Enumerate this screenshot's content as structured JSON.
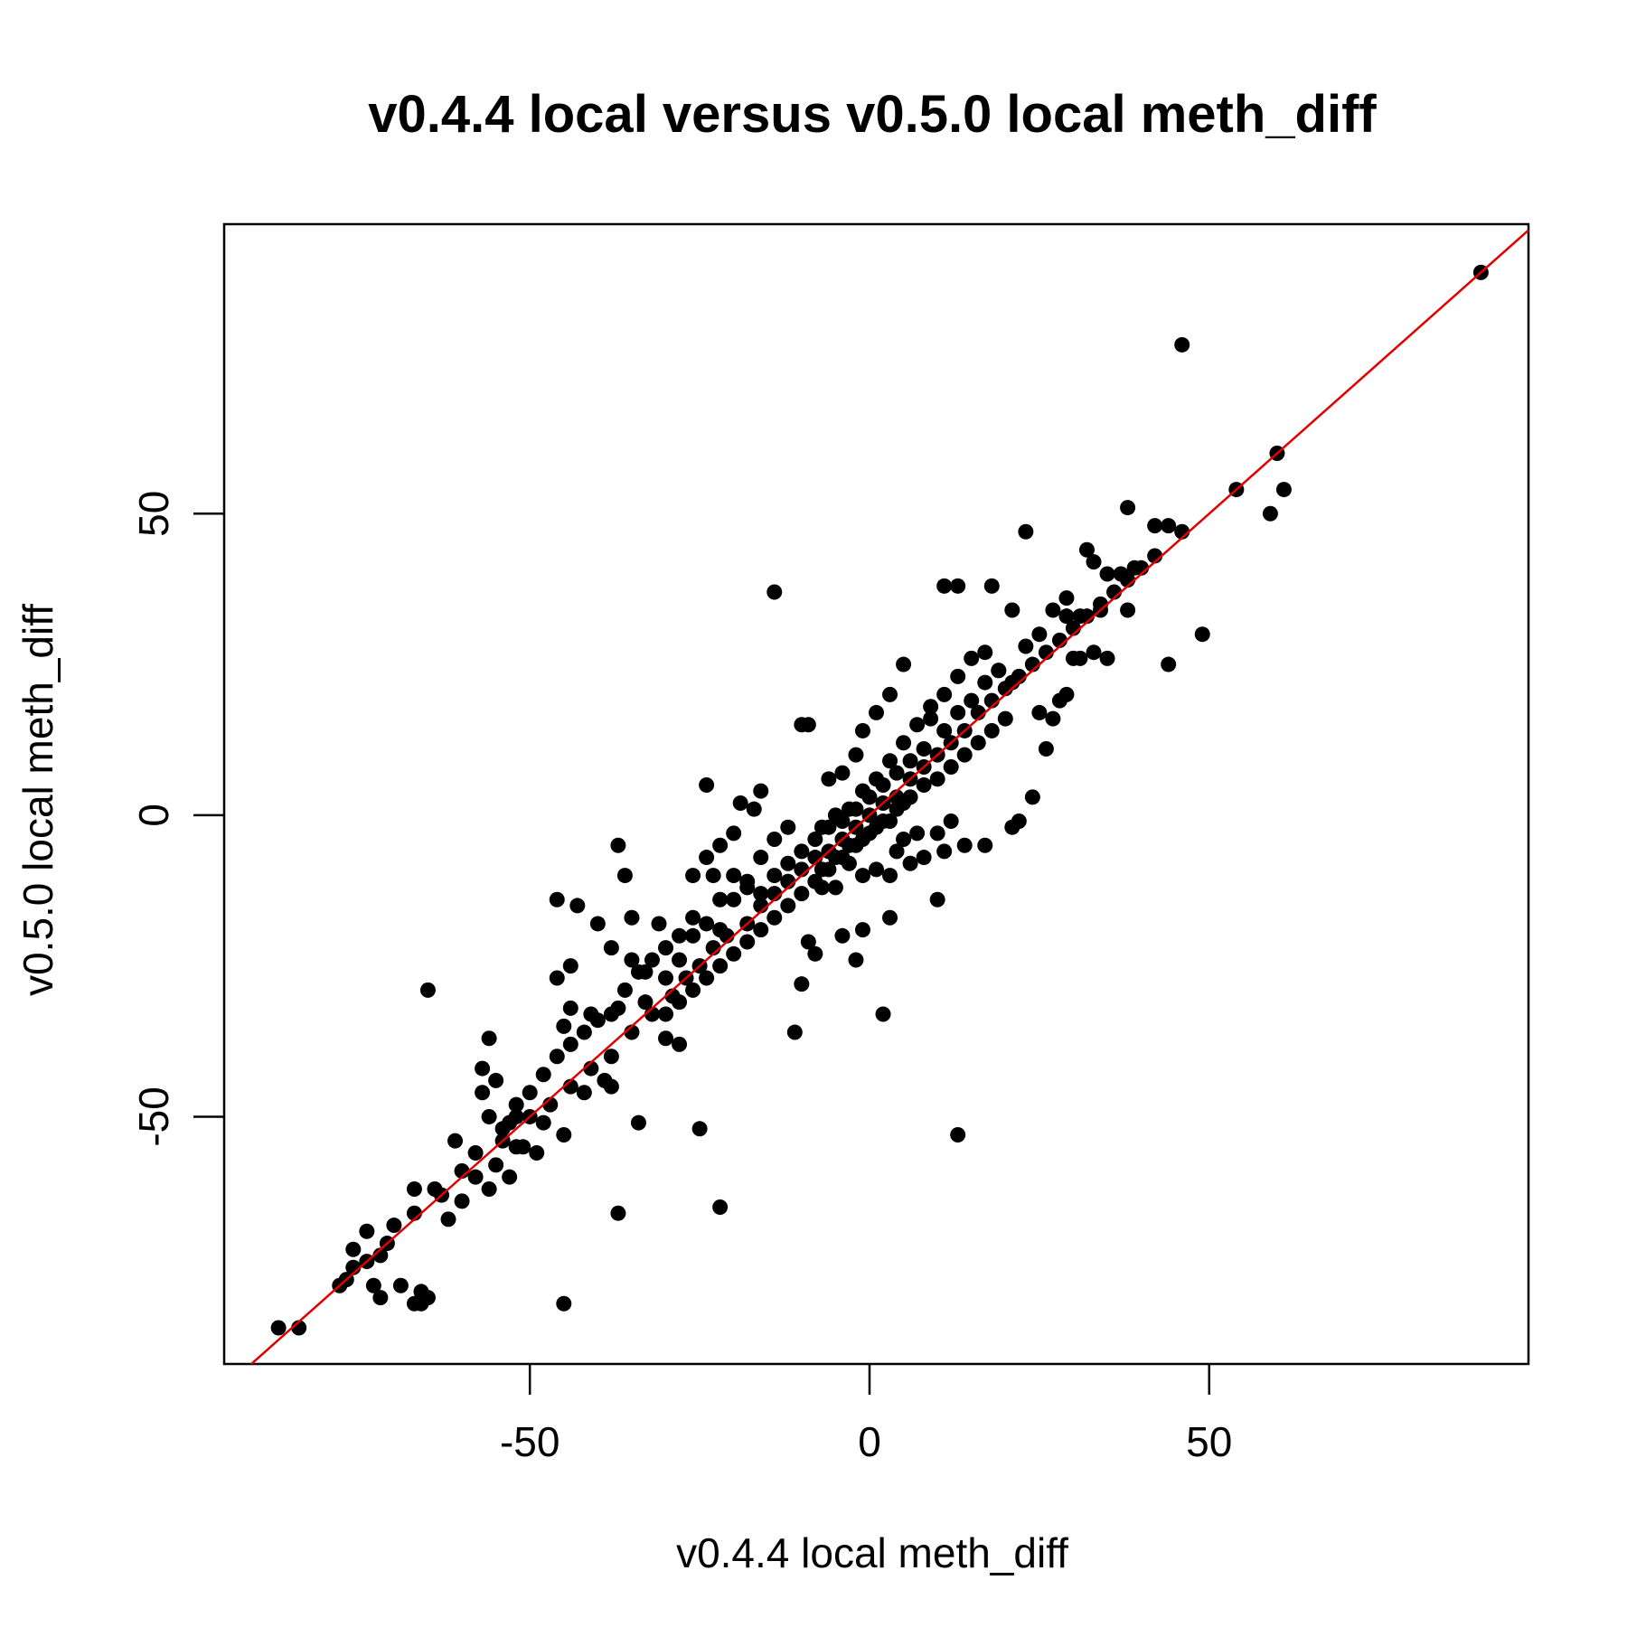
{
  "chart_data": {
    "type": "scatter",
    "title": "v0.4.4 local versus v0.5.0 local meth_diff",
    "xlabel": "v0.4.4 local meth_diff",
    "ylabel": "v0.5.0 local meth_diff",
    "xlim": [
      -95,
      97
    ],
    "ylim": [
      -91,
      98
    ],
    "xticks": [
      -50,
      0,
      50
    ],
    "yticks": [
      -50,
      0,
      50
    ],
    "xtick_labels": [
      "-50",
      "0",
      "50"
    ],
    "ytick_labels": [
      "-50",
      "0",
      "50"
    ],
    "grid": false,
    "legend": "none",
    "point_color": "#000000",
    "reference_line": {
      "type": "identity",
      "slope": 1,
      "intercept": 0,
      "color": "#e00000"
    },
    "points": [
      [
        90,
        90
      ],
      [
        46,
        78
      ],
      [
        60,
        60
      ],
      [
        61,
        54
      ],
      [
        59,
        50
      ],
      [
        54,
        54
      ],
      [
        38,
        51
      ],
      [
        23,
        47
      ],
      [
        42,
        48
      ],
      [
        44,
        48
      ],
      [
        46,
        47
      ],
      [
        49,
        30
      ],
      [
        44,
        25
      ],
      [
        38,
        34
      ],
      [
        34,
        34
      ],
      [
        -14,
        37
      ],
      [
        11,
        38
      ],
      [
        13,
        38
      ],
      [
        18,
        38
      ],
      [
        21,
        34
      ],
      [
        32,
        44
      ],
      [
        33,
        42
      ],
      [
        35,
        40
      ],
      [
        37,
        40
      ],
      [
        39,
        41
      ],
      [
        29,
        36
      ],
      [
        27,
        34
      ],
      [
        25,
        30
      ],
      [
        23,
        28
      ],
      [
        29,
        20
      ],
      [
        30,
        26
      ],
      [
        33,
        27
      ],
      [
        21,
        22
      ],
      [
        19,
        24
      ],
      [
        17,
        27
      ],
      [
        15,
        26
      ],
      [
        13,
        23
      ],
      [
        11,
        20
      ],
      [
        9,
        18
      ],
      [
        5,
        25
      ],
      [
        3,
        20
      ],
      [
        1,
        17
      ],
      [
        -1,
        14
      ],
      [
        -2,
        10
      ],
      [
        -4,
        7
      ],
      [
        -6,
        6
      ],
      [
        -10,
        15
      ],
      [
        -9,
        15
      ],
      [
        -24,
        5
      ],
      [
        -16,
        4
      ],
      [
        -17,
        1
      ],
      [
        -19,
        2
      ],
      [
        -20,
        -3
      ],
      [
        -22,
        -5
      ],
      [
        -24,
        -7
      ],
      [
        -26,
        -10
      ],
      [
        -23,
        -10
      ],
      [
        -37,
        -5
      ],
      [
        -36,
        -10
      ],
      [
        -40,
        -18
      ],
      [
        -35,
        -17
      ],
      [
        -35,
        -24
      ],
      [
        -31,
        -18
      ],
      [
        -46,
        -14
      ],
      [
        -43,
        -15
      ],
      [
        -44,
        -25
      ],
      [
        -46,
        -27
      ],
      [
        -44,
        -32
      ],
      [
        -41,
        -33
      ],
      [
        -45,
        -35
      ],
      [
        -38,
        -33
      ],
      [
        -38,
        -22
      ],
      [
        -33,
        -26
      ],
      [
        -33,
        -31
      ],
      [
        -30,
        -37
      ],
      [
        -28,
        -38
      ],
      [
        -39,
        -44
      ],
      [
        -38,
        -45
      ],
      [
        -34,
        -51
      ],
      [
        -25,
        -52
      ],
      [
        -22,
        -65
      ],
      [
        -37,
        -66
      ],
      [
        -45,
        -53
      ],
      [
        -48,
        -51
      ],
      [
        -42,
        -46
      ],
      [
        -52,
        -50
      ],
      [
        -54,
        -52
      ],
      [
        -56,
        -50
      ],
      [
        -57,
        -46
      ],
      [
        -56,
        -37
      ],
      [
        -57,
        -42
      ],
      [
        -55,
        -44
      ],
      [
        -65,
        -29
      ],
      [
        -61,
        -54
      ],
      [
        -58,
        -56
      ],
      [
        -60,
        -59
      ],
      [
        -56,
        -62
      ],
      [
        -53,
        -60
      ],
      [
        -51,
        -55
      ],
      [
        -49,
        -56
      ],
      [
        -64,
        -62
      ],
      [
        -67,
        -62
      ],
      [
        -67,
        -66
      ],
      [
        -70,
        -68
      ],
      [
        -71,
        -71
      ],
      [
        -72,
        -73
      ],
      [
        -74,
        -74
      ],
      [
        -76,
        -75
      ],
      [
        -77,
        -77
      ],
      [
        -78,
        -78
      ],
      [
        -76,
        -72
      ],
      [
        -74,
        -69
      ],
      [
        -73,
        -78
      ],
      [
        -72,
        -80
      ],
      [
        -69,
        -78
      ],
      [
        -66,
        -79
      ],
      [
        -65,
        -80
      ],
      [
        -66,
        -81
      ],
      [
        -67,
        -81
      ],
      [
        -45,
        -81
      ],
      [
        -84,
        -85
      ],
      [
        -87,
        -85
      ],
      [
        -62,
        -67
      ],
      [
        -60,
        -64
      ],
      [
        -63,
        -63
      ],
      [
        -58,
        -60
      ],
      [
        -55,
        -58
      ],
      [
        -52,
        -55
      ],
      [
        -50,
        -50
      ],
      [
        -47,
        -48
      ],
      [
        -44,
        -45
      ],
      [
        -41,
        -42
      ],
      [
        -38,
        -40
      ],
      [
        -35,
        -36
      ],
      [
        -32,
        -33
      ],
      [
        -29,
        -30
      ],
      [
        -27,
        -27
      ],
      [
        -25,
        -25
      ],
      [
        -23,
        -22
      ],
      [
        -21,
        -20
      ],
      [
        -18,
        -18
      ],
      [
        -16,
        -15
      ],
      [
        -14,
        -13
      ],
      [
        -12,
        -11
      ],
      [
        -10,
        -9
      ],
      [
        -8,
        -7
      ],
      [
        -6,
        -6
      ],
      [
        -4,
        -4
      ],
      [
        -2,
        -2
      ],
      [
        0,
        0
      ],
      [
        2,
        2
      ],
      [
        4,
        3
      ],
      [
        6,
        6
      ],
      [
        8,
        8
      ],
      [
        10,
        10
      ],
      [
        12,
        12
      ],
      [
        14,
        14
      ],
      [
        16,
        17
      ],
      [
        18,
        19
      ],
      [
        20,
        21
      ],
      [
        22,
        23
      ],
      [
        24,
        25
      ],
      [
        26,
        27
      ],
      [
        28,
        29
      ],
      [
        30,
        31
      ],
      [
        32,
        33
      ],
      [
        34,
        35
      ],
      [
        36,
        37
      ],
      [
        38,
        39
      ],
      [
        40,
        41
      ],
      [
        42,
        43
      ],
      [
        -30,
        -27
      ],
      [
        -28,
        -24
      ],
      [
        -26,
        -20
      ],
      [
        -24,
        -18
      ],
      [
        -22,
        -19
      ],
      [
        -20,
        -14
      ],
      [
        -18,
        -12
      ],
      [
        -16,
        -13
      ],
      [
        -14,
        -10
      ],
      [
        -12,
        -8
      ],
      [
        -10,
        -6
      ],
      [
        -8,
        -4
      ],
      [
        -6,
        -2
      ],
      [
        -4,
        -1
      ],
      [
        -2,
        1
      ],
      [
        0,
        3
      ],
      [
        2,
        5
      ],
      [
        4,
        7
      ],
      [
        6,
        9
      ],
      [
        8,
        11
      ],
      [
        -30,
        -33
      ],
      [
        -28,
        -31
      ],
      [
        -26,
        -29
      ],
      [
        -24,
        -27
      ],
      [
        -22,
        -25
      ],
      [
        -20,
        -23
      ],
      [
        -18,
        -21
      ],
      [
        -16,
        -19
      ],
      [
        -14,
        -17
      ],
      [
        -12,
        -15
      ],
      [
        -10,
        -13
      ],
      [
        -8,
        -11
      ],
      [
        -6,
        -9
      ],
      [
        -4,
        -7
      ],
      [
        -2,
        -5
      ],
      [
        0,
        -3
      ],
      [
        2,
        -1
      ],
      [
        4,
        1
      ],
      [
        6,
        3
      ],
      [
        8,
        5
      ],
      [
        10,
        6
      ],
      [
        12,
        8
      ],
      [
        14,
        10
      ],
      [
        16,
        12
      ],
      [
        18,
        14
      ],
      [
        20,
        16
      ],
      [
        -9,
        -21
      ],
      [
        -10,
        -28
      ],
      [
        -11,
        -36
      ],
      [
        -8,
        -23
      ],
      [
        -1,
        -19
      ],
      [
        -2,
        -24
      ],
      [
        -4,
        -20
      ],
      [
        3,
        -17
      ],
      [
        2,
        -33
      ],
      [
        13,
        -53
      ],
      [
        10,
        -14
      ],
      [
        11,
        -6
      ],
      [
        14,
        -5
      ],
      [
        17,
        -5
      ],
      [
        21,
        -2
      ],
      [
        24,
        3
      ],
      [
        22,
        -1
      ],
      [
        26,
        11
      ],
      [
        27,
        16
      ],
      [
        25,
        17
      ],
      [
        28,
        19
      ],
      [
        31,
        26
      ],
      [
        35,
        26
      ],
      [
        29,
        33
      ],
      [
        31,
        33
      ],
      [
        4,
        -6
      ],
      [
        6,
        -8
      ],
      [
        8,
        -7
      ],
      [
        10,
        -3
      ],
      [
        12,
        -1
      ],
      [
        7,
        -3
      ],
      [
        5,
        -4
      ],
      [
        3,
        -10
      ],
      [
        1,
        -9
      ],
      [
        -1,
        -10
      ],
      [
        -3,
        -8
      ],
      [
        -5,
        -12
      ],
      [
        -7,
        -12
      ],
      [
        -12,
        -2
      ],
      [
        -14,
        -4
      ],
      [
        -16,
        -7
      ],
      [
        -18,
        -11
      ],
      [
        -20,
        -10
      ],
      [
        -22,
        -14
      ],
      [
        -26,
        -17
      ],
      [
        -28,
        -20
      ],
      [
        -30,
        -22
      ],
      [
        -32,
        -24
      ],
      [
        -34,
        -26
      ],
      [
        -36,
        -29
      ],
      [
        -37,
        -32
      ],
      [
        -40,
        -34
      ],
      [
        -42,
        -36
      ],
      [
        -44,
        -38
      ],
      [
        -46,
        -40
      ],
      [
        -48,
        -43
      ],
      [
        -50,
        -46
      ],
      [
        -52,
        -48
      ],
      [
        -53,
        -51
      ],
      [
        -54,
        -54
      ],
      [
        5,
        12
      ],
      [
        3,
        9
      ],
      [
        1,
        6
      ],
      [
        -1,
        4
      ],
      [
        -3,
        1
      ],
      [
        -5,
        0
      ],
      [
        -7,
        -2
      ],
      [
        7,
        15
      ],
      [
        9,
        16
      ],
      [
        11,
        14
      ],
      [
        13,
        17
      ],
      [
        15,
        19
      ],
      [
        17,
        22
      ],
      [
        19,
        24
      ],
      [
        5,
        2
      ],
      [
        3,
        -1
      ],
      [
        1,
        -2
      ],
      [
        -1,
        -4
      ],
      [
        -3,
        -5
      ],
      [
        -5,
        -7
      ],
      [
        -7,
        -9
      ]
    ]
  }
}
